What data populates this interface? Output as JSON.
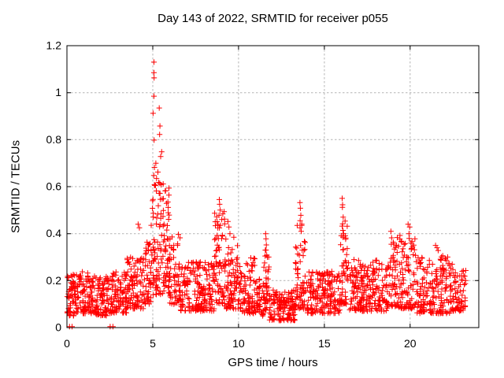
{
  "window": {
    "background": "#ffffff"
  },
  "colors": {
    "marker": "#ff0000",
    "axis": "#000000",
    "grid": "#b4b4b4",
    "text": "#000000",
    "background": "#ffffff"
  },
  "chart_data": {
    "type": "scatter",
    "title": "Day 143 of 2022, SRMTID for receiver p055",
    "xlabel": "GPS time / hours",
    "ylabel": "SRMTID / TECUs",
    "xlim": [
      0,
      24
    ],
    "ylim": [
      0,
      1.2
    ],
    "xticks": [
      0,
      5,
      10,
      15,
      20
    ],
    "xtick_labels": [
      "0",
      "5",
      "10",
      "15",
      "20"
    ],
    "yticks": [
      0,
      0.2,
      0.4,
      0.6,
      0.8,
      1,
      1.2
    ],
    "ytick_labels": [
      "0",
      "0.2",
      "0.4",
      "0.6",
      "0.8",
      "1",
      "1.2"
    ],
    "grid": true,
    "grid_style": "dashed",
    "legend": "none",
    "marker": {
      "symbol": "plus",
      "color": "#ff0000",
      "size": 7,
      "stroke_width": 1
    },
    "observations": {
      "max_value": 1.13,
      "max_value_time_h": 5.1,
      "baseline_band": [
        0.05,
        0.25
      ],
      "data_end_time_h": 23.3,
      "secondary_peaks": [
        [
          9.0,
          0.55
        ],
        [
          13.6,
          0.53
        ],
        [
          16.1,
          0.55
        ],
        [
          11.6,
          0.4
        ],
        [
          18.9,
          0.41
        ],
        [
          20.0,
          0.44
        ],
        [
          5.4,
          0.94
        ]
      ]
    },
    "series": [
      {
        "name": "SRMTID",
        "peak_points": [
          [
            0.15,
            0.004
          ],
          [
            0.3,
            0.004
          ],
          [
            2.52,
            0.004
          ],
          [
            2.68,
            0.004
          ],
          [
            5.07,
            1.13
          ],
          [
            5.07,
            1.085
          ],
          [
            5.08,
            1.063
          ],
          [
            5.07,
            0.985
          ],
          [
            5.38,
            0.935
          ],
          [
            5.02,
            0.912
          ],
          [
            5.42,
            0.858
          ],
          [
            5.4,
            0.822
          ],
          [
            5.08,
            0.798
          ],
          [
            5.52,
            0.748
          ],
          [
            5.46,
            0.728
          ],
          [
            5.18,
            0.7
          ],
          [
            5.1,
            0.682
          ],
          [
            5.3,
            0.662
          ],
          [
            5.06,
            0.648
          ],
          [
            5.22,
            0.635
          ],
          [
            5.35,
            0.618
          ],
          [
            5.12,
            0.605
          ],
          [
            4.15,
            0.44
          ],
          [
            4.22,
            0.425
          ],
          [
            8.88,
            0.545
          ],
          [
            8.9,
            0.525
          ],
          [
            8.93,
            0.5
          ],
          [
            8.86,
            0.478
          ],
          [
            9.02,
            0.46
          ],
          [
            9.38,
            0.452
          ],
          [
            9.44,
            0.428
          ],
          [
            9.5,
            0.4
          ],
          [
            11.58,
            0.4
          ],
          [
            11.6,
            0.378
          ],
          [
            11.62,
            0.352
          ],
          [
            11.56,
            0.33
          ],
          [
            13.58,
            0.532
          ],
          [
            13.6,
            0.508
          ],
          [
            13.63,
            0.478
          ],
          [
            13.59,
            0.455
          ],
          [
            13.68,
            0.435
          ],
          [
            13.65,
            0.41
          ],
          [
            16.04,
            0.55
          ],
          [
            16.06,
            0.523
          ],
          [
            16.05,
            0.512
          ],
          [
            16.1,
            0.47
          ],
          [
            16.04,
            0.432
          ],
          [
            16.12,
            0.4
          ],
          [
            16.08,
            0.385
          ],
          [
            18.88,
            0.41
          ],
          [
            18.92,
            0.382
          ],
          [
            18.9,
            0.355
          ],
          [
            19.88,
            0.44
          ],
          [
            19.97,
            0.428
          ],
          [
            19.93,
            0.4
          ],
          [
            20.28,
            0.378
          ],
          [
            20.05,
            0.36
          ],
          [
            21.48,
            0.35
          ],
          [
            21.57,
            0.34
          ],
          [
            21.63,
            0.328
          ]
        ],
        "density_envelope": {
          "comment": "dense noisy band approximated as [t_start,t_end,val_min,val_max,n_points,power]",
          "seed": 20220143,
          "default_power": 1.45,
          "segments": [
            [
              0.0,
              0.5,
              0.05,
              0.23,
              55
            ],
            [
              0.5,
              1.5,
              0.06,
              0.24,
              105
            ],
            [
              1.5,
              2.5,
              0.05,
              0.22,
              95
            ],
            [
              2.5,
              3.5,
              0.06,
              0.24,
              95
            ],
            [
              3.5,
              4.5,
              0.08,
              0.3,
              100
            ],
            [
              4.5,
              4.9,
              0.1,
              0.38,
              45
            ],
            [
              4.9,
              6.0,
              0.14,
              0.62,
              135,
              1.3
            ],
            [
              6.0,
              6.6,
              0.1,
              0.4,
              60
            ],
            [
              6.6,
              8.6,
              0.07,
              0.28,
              195
            ],
            [
              8.6,
              9.2,
              0.1,
              0.5,
              70,
              1.6
            ],
            [
              9.2,
              10.2,
              0.08,
              0.4,
              100,
              1.8
            ],
            [
              10.2,
              11.0,
              0.06,
              0.3,
              75,
              1.8
            ],
            [
              11.0,
              11.45,
              0.05,
              0.22,
              40
            ],
            [
              11.45,
              11.8,
              0.07,
              0.34,
              40,
              1.8
            ],
            [
              11.8,
              13.3,
              0.03,
              0.16,
              140
            ],
            [
              13.3,
              13.9,
              0.08,
              0.46,
              65,
              1.8
            ],
            [
              13.9,
              15.9,
              0.06,
              0.24,
              185
            ],
            [
              15.9,
              16.35,
              0.1,
              0.5,
              50,
              1.8
            ],
            [
              16.35,
              18.7,
              0.07,
              0.29,
              215
            ],
            [
              18.7,
              19.2,
              0.09,
              0.37,
              45,
              1.6
            ],
            [
              19.2,
              20.4,
              0.08,
              0.4,
              110,
              1.9
            ],
            [
              20.4,
              22.3,
              0.06,
              0.31,
              175
            ],
            [
              22.3,
              23.25,
              0.07,
              0.27,
              85
            ]
          ]
        }
      }
    ]
  }
}
